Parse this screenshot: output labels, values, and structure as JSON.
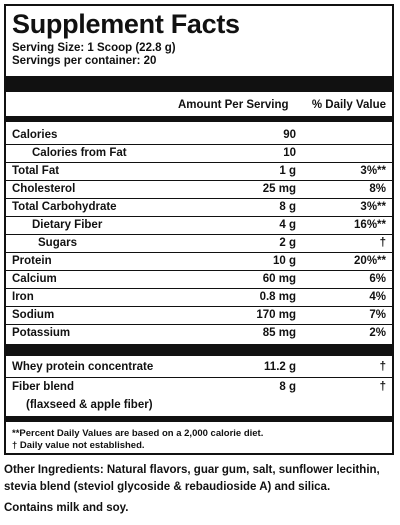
{
  "title": "Supplement Facts",
  "serving_size": "Serving Size: 1 Scoop (22.8 g)",
  "servings_per_container": "Servings per container: 20",
  "header": {
    "amount": "Amount Per Serving",
    "dv": "% Daily Value"
  },
  "nutrients": [
    {
      "name": "Calories",
      "amount": "90",
      "dv": ""
    },
    {
      "name": "Calories from Fat",
      "amount": "10",
      "dv": ""
    },
    {
      "name": "Total Fat",
      "amount": "1 g",
      "dv": "3%**"
    },
    {
      "name": "Cholesterol",
      "amount": "25 mg",
      "dv": "8%"
    },
    {
      "name": "Total Carbohydrate",
      "amount": "8 g",
      "dv": "3%**"
    },
    {
      "name": "Dietary Fiber",
      "amount": "4 g",
      "dv": "16%**"
    },
    {
      "name": "Sugars",
      "amount": "2 g",
      "dv": "†"
    },
    {
      "name": "Protein",
      "amount": "10 g",
      "dv": "20%**"
    },
    {
      "name": "Calcium",
      "amount": "60 mg",
      "dv": "6%"
    },
    {
      "name": "Iron",
      "amount": "0.8 mg",
      "dv": "4%"
    },
    {
      "name": "Sodium",
      "amount": "170 mg",
      "dv": "7%"
    },
    {
      "name": "Potassium",
      "amount": "85 mg",
      "dv": "2%"
    }
  ],
  "blends": [
    {
      "name": "Whey protein concentrate",
      "amount": "11.2 g",
      "dv": "†"
    },
    {
      "name": "Fiber blend",
      "sub": "(flaxseed & apple fiber)",
      "amount": "8 g",
      "dv": "†"
    }
  ],
  "footnotes": [
    "**Percent Daily Values are based on a 2,000 calorie diet.",
    "† Daily value not established."
  ],
  "other_ingredients": "Other Ingredients: Natural flavors, guar gum, salt, sunflower lecithin, stevia blend (steviol glycoside & rebaudioside A) and silica.",
  "allergen": "Contains milk and soy."
}
